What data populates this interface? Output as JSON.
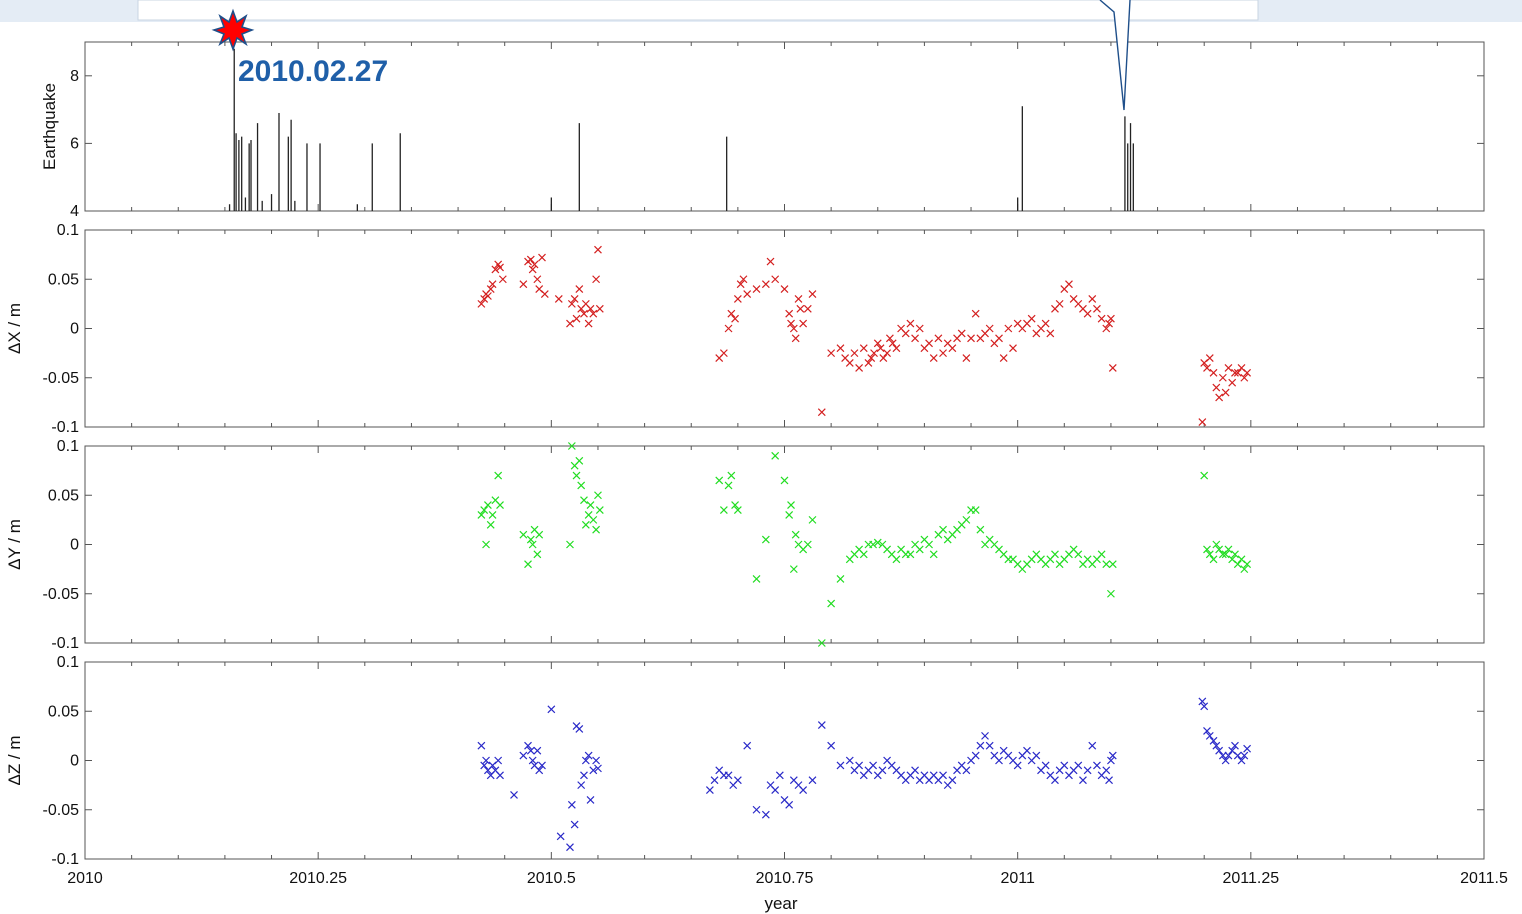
{
  "chart_data": {
    "type": "scatter",
    "xlabel": "year",
    "xlim": [
      2010,
      2011.5
    ],
    "xticks": [
      2010,
      2010.25,
      2010.5,
      2010.75,
      2011,
      2011.25,
      2011.5
    ],
    "xtick_labels": [
      "2010",
      "2010.25",
      "2010.5",
      "2010.75",
      "2011",
      "2011.25",
      "2011.5"
    ],
    "annotations": [
      {
        "text": "2010.02.27",
        "x": 2010.16,
        "y": 8.8,
        "color": "#1f5fa8"
      }
    ],
    "panels": [
      {
        "ylabel": "Earthquake",
        "type": "bar",
        "ylim": [
          4,
          9
        ],
        "yticks": [
          4,
          6,
          8
        ],
        "ytick_labels": [
          "4",
          "6",
          "8"
        ],
        "color": "#222222",
        "events": [
          {
            "x": 2010.16,
            "m": 8.8
          },
          {
            "x": 2010.162,
            "m": 6.3
          },
          {
            "x": 2010.165,
            "m": 6.1
          },
          {
            "x": 2010.168,
            "m": 6.2
          },
          {
            "x": 2010.155,
            "m": 4.2
          },
          {
            "x": 2010.172,
            "m": 4.4
          },
          {
            "x": 2010.176,
            "m": 6.0
          },
          {
            "x": 2010.178,
            "m": 6.1
          },
          {
            "x": 2010.185,
            "m": 6.6
          },
          {
            "x": 2010.19,
            "m": 4.3
          },
          {
            "x": 2010.2,
            "m": 4.5
          },
          {
            "x": 2010.208,
            "m": 6.9
          },
          {
            "x": 2010.218,
            "m": 6.2
          },
          {
            "x": 2010.221,
            "m": 6.7
          },
          {
            "x": 2010.225,
            "m": 4.3
          },
          {
            "x": 2010.238,
            "m": 6.0
          },
          {
            "x": 2010.252,
            "m": 6.0
          },
          {
            "x": 2010.292,
            "m": 4.2
          },
          {
            "x": 2010.308,
            "m": 6.0
          },
          {
            "x": 2010.338,
            "m": 6.3
          },
          {
            "x": 2010.5,
            "m": 4.4
          },
          {
            "x": 2010.53,
            "m": 6.6
          },
          {
            "x": 2010.688,
            "m": 6.2
          },
          {
            "x": 2011.0,
            "m": 4.4
          },
          {
            "x": 2011.005,
            "m": 7.1
          },
          {
            "x": 2011.115,
            "m": 6.8
          },
          {
            "x": 2011.118,
            "m": 6.0
          },
          {
            "x": 2011.121,
            "m": 6.6
          },
          {
            "x": 2011.124,
            "m": 6.0
          }
        ]
      },
      {
        "ylabel": "ΔX / m",
        "type": "scatter",
        "ylim": [
          -0.1,
          0.1
        ],
        "yticks": [
          -0.1,
          -0.05,
          0,
          0.05,
          0.1
        ],
        "ytick_labels": [
          "-0.1",
          "-0.05",
          "0",
          "0.05",
          "0.1"
        ],
        "color": "#d42020",
        "x": [
          2010.425,
          2010.428,
          2010.43,
          2010.432,
          2010.435,
          2010.437,
          2010.44,
          2010.443,
          2010.445,
          2010.448,
          2010.47,
          2010.475,
          2010.478,
          2010.48,
          2010.482,
          2010.485,
          2010.487,
          2010.49,
          2010.493,
          2010.508,
          2010.52,
          2010.522,
          2010.525,
          2010.527,
          2010.53,
          2010.532,
          2010.535,
          2010.537,
          2010.54,
          2010.542,
          2010.545,
          2010.548,
          2010.55,
          2010.552,
          2010.68,
          2010.685,
          2010.69,
          2010.693,
          2010.697,
          2010.7,
          2010.703,
          2010.706,
          2010.71,
          2010.72,
          2010.73,
          2010.735,
          2010.74,
          2010.75,
          2010.755,
          2010.757,
          2010.76,
          2010.762,
          2010.765,
          2010.767,
          2010.77,
          2010.775,
          2010.78,
          2010.79,
          2010.8,
          2010.81,
          2010.815,
          2010.82,
          2010.825,
          2010.83,
          2010.835,
          2010.84,
          2010.843,
          2010.846,
          2010.85,
          2010.853,
          2010.856,
          2010.86,
          2010.863,
          2010.866,
          2010.87,
          2010.875,
          2010.88,
          2010.885,
          2010.89,
          2010.895,
          2010.9,
          2010.905,
          2010.91,
          2010.915,
          2010.92,
          2010.925,
          2010.93,
          2010.935,
          2010.94,
          2010.945,
          2010.95,
          2010.955,
          2010.96,
          2010.965,
          2010.97,
          2010.975,
          2010.98,
          2010.985,
          2010.99,
          2010.995,
          2011.0,
          2011.005,
          2011.01,
          2011.015,
          2011.02,
          2011.025,
          2011.03,
          2011.035,
          2011.04,
          2011.045,
          2011.05,
          2011.055,
          2011.06,
          2011.065,
          2011.07,
          2011.075,
          2011.08,
          2011.085,
          2011.09,
          2011.095,
          2011.098,
          2011.1,
          2011.102,
          2011.198,
          2011.2,
          2011.203,
          2011.206,
          2011.21,
          2011.213,
          2011.216,
          2011.22,
          2011.223,
          2011.226,
          2011.23,
          2011.233,
          2011.236,
          2011.24,
          2011.243,
          2011.246
        ],
        "y": [
          0.025,
          0.03,
          0.035,
          0.033,
          0.04,
          0.045,
          0.06,
          0.065,
          0.062,
          0.05,
          0.045,
          0.068,
          0.07,
          0.06,
          0.065,
          0.05,
          0.04,
          0.072,
          0.035,
          0.03,
          0.005,
          0.025,
          0.03,
          0.01,
          0.04,
          0.02,
          0.015,
          0.025,
          0.005,
          0.02,
          0.015,
          0.05,
          0.08,
          0.02,
          -0.03,
          -0.025,
          0.0,
          0.015,
          0.01,
          0.03,
          0.045,
          0.05,
          0.035,
          0.04,
          0.045,
          0.068,
          0.05,
          0.04,
          0.015,
          0.005,
          0.0,
          -0.01,
          0.03,
          0.02,
          0.005,
          0.02,
          0.035,
          -0.085,
          -0.025,
          -0.02,
          -0.03,
          -0.035,
          -0.025,
          -0.04,
          -0.02,
          -0.035,
          -0.03,
          -0.025,
          -0.015,
          -0.02,
          -0.03,
          -0.025,
          -0.01,
          -0.015,
          -0.02,
          0.0,
          -0.005,
          0.005,
          -0.01,
          0.0,
          -0.02,
          -0.015,
          -0.03,
          -0.01,
          -0.025,
          -0.015,
          -0.02,
          -0.01,
          -0.005,
          -0.03,
          -0.01,
          0.015,
          -0.01,
          -0.005,
          0.0,
          -0.015,
          -0.01,
          -0.03,
          0.0,
          -0.02,
          0.005,
          0.0,
          0.005,
          0.01,
          -0.005,
          0.0,
          0.005,
          -0.005,
          0.02,
          0.025,
          0.04,
          0.045,
          0.03,
          0.025,
          0.02,
          0.015,
          0.03,
          0.02,
          0.01,
          0.0,
          0.005,
          0.01,
          -0.04,
          -0.095,
          -0.035,
          -0.04,
          -0.03,
          -0.045,
          -0.06,
          -0.07,
          -0.05,
          -0.065,
          -0.04,
          -0.055,
          -0.045,
          -0.045,
          -0.04,
          -0.05,
          -0.045
        ],
        "marker": "x"
      },
      {
        "ylabel": "ΔY / m",
        "type": "scatter",
        "ylim": [
          -0.1,
          0.1
        ],
        "yticks": [
          -0.1,
          -0.05,
          0,
          0.05,
          0.1
        ],
        "ytick_labels": [
          "-0.1",
          "-0.05",
          "0",
          "0.05",
          "0.1"
        ],
        "color": "#22dd22",
        "x": [
          2010.425,
          2010.428,
          2010.43,
          2010.432,
          2010.435,
          2010.437,
          2010.44,
          2010.443,
          2010.445,
          2010.47,
          2010.475,
          2010.478,
          2010.48,
          2010.482,
          2010.485,
          2010.487,
          2010.52,
          2010.522,
          2010.525,
          2010.527,
          2010.53,
          2010.532,
          2010.535,
          2010.537,
          2010.54,
          2010.542,
          2010.545,
          2010.548,
          2010.55,
          2010.552,
          2010.68,
          2010.685,
          2010.69,
          2010.693,
          2010.697,
          2010.7,
          2010.72,
          2010.73,
          2010.74,
          2010.75,
          2010.755,
          2010.757,
          2010.76,
          2010.762,
          2010.765,
          2010.77,
          2010.775,
          2010.78,
          2010.79,
          2010.8,
          2010.81,
          2010.82,
          2010.825,
          2010.83,
          2010.835,
          2010.84,
          2010.845,
          2010.85,
          2010.855,
          2010.86,
          2010.865,
          2010.87,
          2010.875,
          2010.88,
          2010.885,
          2010.89,
          2010.895,
          2010.9,
          2010.905,
          2010.91,
          2010.915,
          2010.92,
          2010.925,
          2010.93,
          2010.935,
          2010.94,
          2010.945,
          2010.95,
          2010.955,
          2010.96,
          2010.965,
          2010.97,
          2010.975,
          2010.98,
          2010.985,
          2010.99,
          2010.995,
          2011.0,
          2011.005,
          2011.01,
          2011.015,
          2011.02,
          2011.025,
          2011.03,
          2011.035,
          2011.04,
          2011.045,
          2011.05,
          2011.055,
          2011.06,
          2011.065,
          2011.07,
          2011.075,
          2011.08,
          2011.085,
          2011.09,
          2011.095,
          2011.1,
          2011.102,
          2011.2,
          2011.203,
          2011.206,
          2011.21,
          2011.213,
          2011.216,
          2011.22,
          2011.223,
          2011.226,
          2011.23,
          2011.233,
          2011.236,
          2011.24,
          2011.243,
          2011.246
        ],
        "y": [
          0.03,
          0.035,
          0.0,
          0.04,
          0.02,
          0.03,
          0.045,
          0.07,
          0.04,
          0.01,
          -0.02,
          0.005,
          0.0,
          0.015,
          -0.01,
          0.01,
          0.0,
          0.1,
          0.08,
          0.07,
          0.085,
          0.06,
          0.045,
          0.02,
          0.03,
          0.04,
          0.025,
          0.015,
          0.05,
          0.035,
          0.065,
          0.035,
          0.06,
          0.07,
          0.04,
          0.035,
          -0.035,
          0.005,
          0.09,
          0.065,
          0.03,
          0.04,
          -0.025,
          0.01,
          0.0,
          -0.005,
          0.0,
          0.025,
          -0.1,
          -0.06,
          -0.035,
          -0.015,
          -0.01,
          -0.005,
          -0.01,
          0.0,
          0.0,
          0.002,
          0.0,
          -0.005,
          -0.01,
          -0.015,
          -0.005,
          -0.01,
          -0.01,
          0.0,
          -0.005,
          0.005,
          0.0,
          -0.01,
          0.01,
          0.015,
          0.005,
          0.01,
          0.015,
          0.02,
          0.025,
          0.035,
          0.035,
          0.015,
          0.0,
          0.005,
          0.0,
          -0.005,
          -0.01,
          -0.015,
          -0.015,
          -0.02,
          -0.025,
          -0.02,
          -0.015,
          -0.01,
          -0.015,
          -0.02,
          -0.015,
          -0.01,
          -0.02,
          -0.015,
          -0.01,
          -0.005,
          -0.01,
          -0.02,
          -0.015,
          -0.02,
          -0.015,
          -0.01,
          -0.02,
          -0.05,
          -0.02,
          0.07,
          -0.005,
          -0.01,
          -0.015,
          0.0,
          -0.005,
          -0.01,
          -0.01,
          -0.005,
          -0.015,
          -0.01,
          -0.02,
          -0.015,
          -0.025,
          -0.02
        ],
        "marker": "x"
      },
      {
        "ylabel": "ΔZ / m",
        "type": "scatter",
        "ylim": [
          -0.1,
          0.1
        ],
        "yticks": [
          -0.1,
          -0.05,
          0,
          0.05,
          0.1
        ],
        "ytick_labels": [
          "-0.1",
          "-0.05",
          "0",
          "0.05",
          "0.1"
        ],
        "color": "#2a2ac8",
        "x": [
          2010.425,
          2010.428,
          2010.43,
          2010.432,
          2010.435,
          2010.437,
          2010.44,
          2010.443,
          2010.445,
          2010.46,
          2010.47,
          2010.475,
          2010.478,
          2010.48,
          2010.482,
          2010.485,
          2010.487,
          2010.49,
          2010.5,
          2010.51,
          2010.52,
          2010.522,
          2010.525,
          2010.527,
          2010.53,
          2010.532,
          2010.535,
          2010.537,
          2010.54,
          2010.542,
          2010.545,
          2010.548,
          2010.55,
          2010.67,
          2010.675,
          2010.68,
          2010.685,
          2010.69,
          2010.695,
          2010.7,
          2010.71,
          2010.72,
          2010.73,
          2010.735,
          2010.74,
          2010.745,
          2010.75,
          2010.755,
          2010.76,
          2010.765,
          2010.77,
          2010.78,
          2010.79,
          2010.8,
          2010.81,
          2010.82,
          2010.825,
          2010.83,
          2010.835,
          2010.84,
          2010.845,
          2010.85,
          2010.855,
          2010.86,
          2010.865,
          2010.87,
          2010.875,
          2010.88,
          2010.885,
          2010.89,
          2010.895,
          2010.9,
          2010.905,
          2010.91,
          2010.915,
          2010.92,
          2010.925,
          2010.93,
          2010.935,
          2010.94,
          2010.945,
          2010.95,
          2010.955,
          2010.96,
          2010.965,
          2010.97,
          2010.975,
          2010.98,
          2010.985,
          2010.99,
          2010.995,
          2011.0,
          2011.005,
          2011.01,
          2011.015,
          2011.02,
          2011.025,
          2011.03,
          2011.035,
          2011.04,
          2011.045,
          2011.05,
          2011.055,
          2011.06,
          2011.065,
          2011.07,
          2011.075,
          2011.08,
          2011.085,
          2011.09,
          2011.095,
          2011.098,
          2011.1,
          2011.102,
          2011.198,
          2011.2,
          2011.203,
          2011.206,
          2011.21,
          2011.213,
          2011.216,
          2011.22,
          2011.223,
          2011.226,
          2011.23,
          2011.233,
          2011.236,
          2011.24,
          2011.243,
          2011.246
        ],
        "y": [
          0.015,
          -0.005,
          0.0,
          -0.01,
          -0.015,
          -0.005,
          -0.01,
          0.0,
          -0.015,
          -0.035,
          0.005,
          0.015,
          0.01,
          0.0,
          -0.005,
          0.01,
          -0.01,
          -0.005,
          0.052,
          -0.077,
          -0.088,
          -0.045,
          -0.065,
          0.035,
          0.032,
          -0.025,
          -0.015,
          0.0,
          0.005,
          -0.04,
          -0.01,
          0.0,
          -0.008,
          -0.03,
          -0.02,
          -0.01,
          -0.015,
          -0.015,
          -0.025,
          -0.02,
          0.015,
          -0.05,
          -0.055,
          -0.025,
          -0.03,
          -0.015,
          -0.04,
          -0.045,
          -0.02,
          -0.025,
          -0.03,
          -0.02,
          0.036,
          0.015,
          -0.005,
          0.0,
          -0.01,
          -0.005,
          -0.015,
          -0.01,
          -0.005,
          -0.015,
          -0.01,
          0.0,
          -0.005,
          -0.01,
          -0.015,
          -0.02,
          -0.015,
          -0.01,
          -0.02,
          -0.015,
          -0.02,
          -0.015,
          -0.02,
          -0.015,
          -0.025,
          -0.02,
          -0.01,
          -0.005,
          -0.01,
          0.0,
          0.005,
          0.015,
          0.025,
          0.015,
          0.005,
          0.0,
          0.01,
          0.005,
          0.0,
          -0.005,
          0.005,
          0.01,
          0.0,
          0.005,
          -0.01,
          -0.005,
          -0.015,
          -0.02,
          -0.01,
          -0.005,
          -0.015,
          -0.01,
          -0.005,
          -0.02,
          -0.01,
          0.015,
          -0.005,
          -0.015,
          -0.01,
          -0.02,
          0.0,
          0.005,
          0.06,
          0.055,
          0.03,
          0.025,
          0.02,
          0.015,
          0.01,
          0.005,
          0.0,
          0.005,
          0.01,
          0.015,
          0.005,
          0.0,
          0.005,
          0.012
        ],
        "marker": "x"
      }
    ]
  }
}
